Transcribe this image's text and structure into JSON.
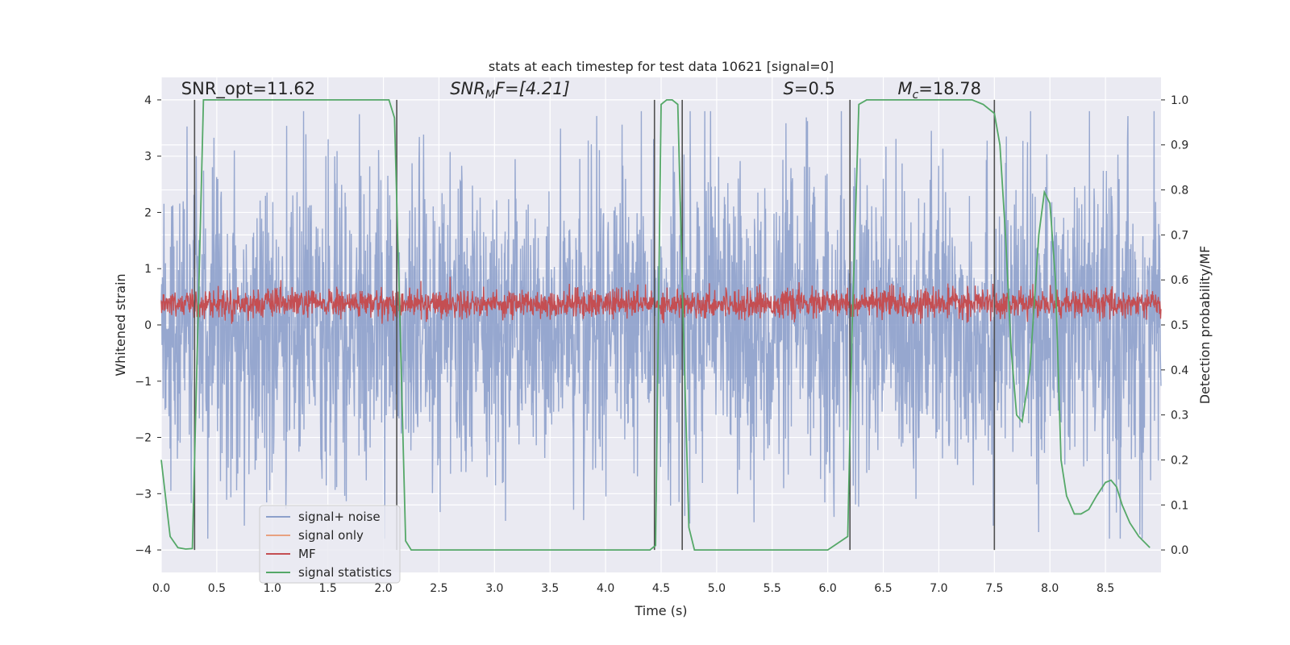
{
  "chart_data": {
    "type": "line",
    "title": "stats at each timestep for test data 10621 [signal=0]",
    "xlabel": "Time (s)",
    "ylabel": "Whitened strain",
    "y2label": "Detection probability/MF",
    "xlim": [
      0,
      9
    ],
    "ylim": [
      -4.4,
      4.4
    ],
    "y2lim": [
      -0.05,
      1.05
    ],
    "xticks": [
      "0.0",
      "0.5",
      "1.0",
      "1.5",
      "2.0",
      "2.5",
      "3.0",
      "3.5",
      "4.0",
      "4.5",
      "5.0",
      "5.5",
      "6.0",
      "6.5",
      "7.0",
      "7.5",
      "8.0",
      "8.5"
    ],
    "xtick_values": [
      0,
      0.5,
      1,
      1.5,
      2,
      2.5,
      3,
      3.5,
      4,
      4.5,
      5,
      5.5,
      6,
      6.5,
      7,
      7.5,
      8,
      8.5
    ],
    "yticks": [
      "−4",
      "−3",
      "−2",
      "−1",
      "0",
      "1",
      "2",
      "3",
      "4"
    ],
    "ytick_values": [
      -4,
      -3,
      -2,
      -1,
      0,
      1,
      2,
      3,
      4
    ],
    "y2ticks": [
      "0.0",
      "0.1",
      "0.2",
      "0.3",
      "0.4",
      "0.5",
      "0.6",
      "0.7",
      "0.8",
      "0.9",
      "1.0"
    ],
    "y2tick_values": [
      0,
      0.1,
      0.2,
      0.3,
      0.4,
      0.5,
      0.6,
      0.7,
      0.8,
      0.9,
      1.0
    ],
    "grid": true,
    "legend_position": "lower-left",
    "annotations": [
      {
        "text": "SNR_opt=11.62",
        "x": 0.18,
        "y": 4.1
      },
      {
        "text": "SNR",
        "sub": "M",
        "tail": "F=[4.21]",
        "italic": true,
        "x": 2.6,
        "y": 4.1
      },
      {
        "text": "S",
        "tail": "=0.5",
        "italic": true,
        "x": 5.6,
        "y": 4.1
      },
      {
        "text": "M",
        "sub": "c",
        "tail": "=18.78",
        "italic": true,
        "x": 6.63,
        "y": 4.1
      }
    ],
    "vlines": {
      "x": [
        0.3,
        2.12,
        4.44,
        4.69,
        6.2,
        7.5
      ],
      "y_range": [
        -4,
        4
      ],
      "color": "#505050"
    },
    "series": [
      {
        "name": "signal+ noise",
        "color": "#8da0cb",
        "axis": "left",
        "description_value": "whitened noise, approx +/- 2.5 envelope with peaks to +/- 3.8",
        "envelope": {
          "typical": 2.4,
          "peak": 3.8
        }
      },
      {
        "name": "signal only",
        "color": "#e8a180",
        "axis": "left",
        "values": []
      },
      {
        "name": "MF",
        "color": "#c44e52",
        "axis": "left",
        "envelope": {
          "center": 0.38,
          "amplitude": 0.28,
          "peak": 0.95
        }
      },
      {
        "name": "signal statistics",
        "color": "#55a868",
        "axis": "right",
        "x": [
          0.0,
          0.08,
          0.15,
          0.22,
          0.28,
          0.33,
          0.38,
          0.5,
          1.0,
          1.5,
          2.0,
          2.05,
          2.1,
          2.15,
          2.2,
          2.25,
          3.0,
          4.0,
          4.4,
          4.45,
          4.5,
          4.55,
          4.6,
          4.65,
          4.7,
          4.75,
          4.8,
          5.0,
          6.0,
          6.18,
          6.22,
          6.28,
          6.35,
          6.5,
          7.0,
          7.3,
          7.4,
          7.5,
          7.55,
          7.6,
          7.65,
          7.7,
          7.75,
          7.82,
          7.9,
          7.95,
          8.0,
          8.05,
          8.1,
          8.15,
          8.22,
          8.28,
          8.35,
          8.42,
          8.5,
          8.55,
          8.6,
          8.65,
          8.72,
          8.8,
          8.9
        ],
        "values": [
          0.2,
          0.03,
          0.005,
          0.002,
          0.003,
          0.5,
          1.0,
          1.0,
          1.0,
          1.0,
          1.0,
          1.0,
          0.96,
          0.5,
          0.02,
          0.0,
          0.0,
          0.0,
          0.0,
          0.01,
          0.99,
          1.0,
          1.0,
          0.99,
          0.5,
          0.05,
          0.0,
          0.0,
          0.0,
          0.03,
          0.5,
          0.99,
          1.0,
          1.0,
          1.0,
          1.0,
          0.99,
          0.97,
          0.9,
          0.7,
          0.45,
          0.3,
          0.285,
          0.4,
          0.7,
          0.795,
          0.77,
          0.6,
          0.2,
          0.12,
          0.08,
          0.08,
          0.09,
          0.12,
          0.15,
          0.155,
          0.14,
          0.1,
          0.06,
          0.03,
          0.005
        ]
      }
    ]
  }
}
